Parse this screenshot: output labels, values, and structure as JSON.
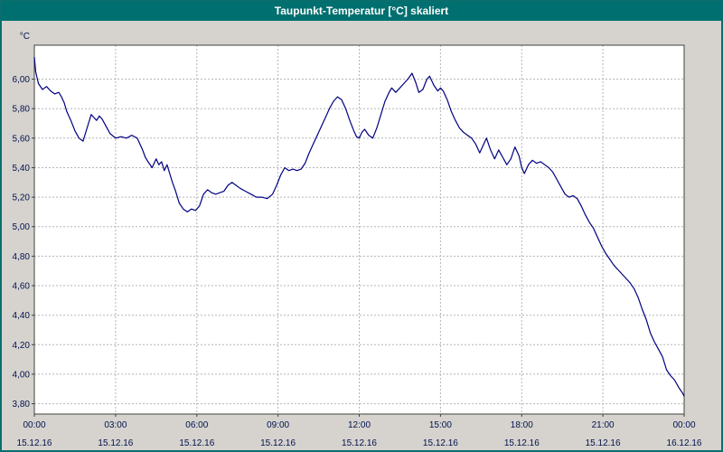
{
  "window": {
    "title": "Taupunkt-Temperatur [°C] skaliert"
  },
  "chart_data": {
    "type": "line",
    "title": "Taupunkt-Temperatur [°C] skaliert",
    "ylabel": "°C",
    "xlabel": "",
    "xlim_hours": [
      0,
      24
    ],
    "ylim": [
      3.73,
      6.23
    ],
    "grid": true,
    "legend": "none",
    "colors": {
      "line": "#000080",
      "grid": "#b5b5b5",
      "plot_border": "#404040",
      "plot_bg": "#ffffff",
      "page_bg": "#d6d3ce",
      "titlebar_bg": "#006f6f",
      "titlebar_text": "#ffffff",
      "axis_text": "#00114d"
    },
    "y_ticks": [
      6.0,
      5.8,
      5.6,
      5.4,
      5.2,
      5.0,
      4.8,
      4.6,
      4.4,
      4.2,
      4.0,
      3.8
    ],
    "y_tick_labels": [
      "6,00",
      "5,80",
      "5,60",
      "5,40",
      "5,20",
      "5,00",
      "4,80",
      "4,60",
      "4,40",
      "4,20",
      "4,00",
      "3,80"
    ],
    "x_ticks_hours": [
      0,
      3,
      6,
      9,
      12,
      15,
      18,
      21,
      24
    ],
    "x_tick_time_labels": [
      "00:00",
      "03:00",
      "06:00",
      "09:00",
      "12:00",
      "15:00",
      "18:00",
      "21:00",
      "00:00"
    ],
    "x_tick_date_labels": [
      "15.12.16",
      "15.12.16",
      "15.12.16",
      "15.12.16",
      "15.12.16",
      "15.12.16",
      "15.12.16",
      "15.12.16",
      "16.12.16"
    ],
    "series": [
      {
        "name": "Taupunkt-Temperatur [°C]",
        "points": [
          [
            0.0,
            6.15
          ],
          [
            0.05,
            6.05
          ],
          [
            0.15,
            5.97
          ],
          [
            0.3,
            5.93
          ],
          [
            0.45,
            5.95
          ],
          [
            0.6,
            5.92
          ],
          [
            0.75,
            5.9
          ],
          [
            0.9,
            5.91
          ],
          [
            1.0,
            5.88
          ],
          [
            1.1,
            5.84
          ],
          [
            1.2,
            5.78
          ],
          [
            1.35,
            5.72
          ],
          [
            1.5,
            5.65
          ],
          [
            1.65,
            5.6
          ],
          [
            1.8,
            5.58
          ],
          [
            1.9,
            5.64
          ],
          [
            2.0,
            5.7
          ],
          [
            2.1,
            5.76
          ],
          [
            2.2,
            5.74
          ],
          [
            2.3,
            5.72
          ],
          [
            2.4,
            5.75
          ],
          [
            2.5,
            5.73
          ],
          [
            2.65,
            5.68
          ],
          [
            2.8,
            5.63
          ],
          [
            3.0,
            5.6
          ],
          [
            3.2,
            5.61
          ],
          [
            3.4,
            5.6
          ],
          [
            3.6,
            5.62
          ],
          [
            3.8,
            5.6
          ],
          [
            3.9,
            5.56
          ],
          [
            4.0,
            5.52
          ],
          [
            4.1,
            5.47
          ],
          [
            4.2,
            5.44
          ],
          [
            4.35,
            5.4
          ],
          [
            4.5,
            5.46
          ],
          [
            4.6,
            5.42
          ],
          [
            4.7,
            5.44
          ],
          [
            4.8,
            5.38
          ],
          [
            4.9,
            5.42
          ],
          [
            5.0,
            5.36
          ],
          [
            5.1,
            5.3
          ],
          [
            5.2,
            5.25
          ],
          [
            5.35,
            5.16
          ],
          [
            5.5,
            5.12
          ],
          [
            5.65,
            5.1
          ],
          [
            5.8,
            5.12
          ],
          [
            5.95,
            5.11
          ],
          [
            6.1,
            5.14
          ],
          [
            6.25,
            5.22
          ],
          [
            6.4,
            5.25
          ],
          [
            6.55,
            5.23
          ],
          [
            6.7,
            5.22
          ],
          [
            6.85,
            5.23
          ],
          [
            7.0,
            5.24
          ],
          [
            7.15,
            5.28
          ],
          [
            7.3,
            5.3
          ],
          [
            7.45,
            5.28
          ],
          [
            7.6,
            5.26
          ],
          [
            7.8,
            5.24
          ],
          [
            8.0,
            5.22
          ],
          [
            8.2,
            5.2
          ],
          [
            8.4,
            5.2
          ],
          [
            8.6,
            5.19
          ],
          [
            8.8,
            5.22
          ],
          [
            8.95,
            5.28
          ],
          [
            9.1,
            5.35
          ],
          [
            9.25,
            5.4
          ],
          [
            9.4,
            5.38
          ],
          [
            9.55,
            5.39
          ],
          [
            9.7,
            5.38
          ],
          [
            9.85,
            5.39
          ],
          [
            10.0,
            5.43
          ],
          [
            10.15,
            5.5
          ],
          [
            10.3,
            5.56
          ],
          [
            10.45,
            5.62
          ],
          [
            10.6,
            5.68
          ],
          [
            10.75,
            5.74
          ],
          [
            10.9,
            5.8
          ],
          [
            11.05,
            5.85
          ],
          [
            11.2,
            5.88
          ],
          [
            11.35,
            5.86
          ],
          [
            11.5,
            5.8
          ],
          [
            11.65,
            5.72
          ],
          [
            11.8,
            5.65
          ],
          [
            11.9,
            5.61
          ],
          [
            12.0,
            5.6
          ],
          [
            12.1,
            5.64
          ],
          [
            12.2,
            5.66
          ],
          [
            12.35,
            5.62
          ],
          [
            12.5,
            5.6
          ],
          [
            12.65,
            5.67
          ],
          [
            12.8,
            5.76
          ],
          [
            12.95,
            5.85
          ],
          [
            13.1,
            5.91
          ],
          [
            13.2,
            5.94
          ],
          [
            13.35,
            5.91
          ],
          [
            13.5,
            5.94
          ],
          [
            13.65,
            5.97
          ],
          [
            13.8,
            6.0
          ],
          [
            13.95,
            6.04
          ],
          [
            14.1,
            5.97
          ],
          [
            14.2,
            5.91
          ],
          [
            14.35,
            5.93
          ],
          [
            14.5,
            6.0
          ],
          [
            14.6,
            6.02
          ],
          [
            14.75,
            5.96
          ],
          [
            14.9,
            5.92
          ],
          [
            15.0,
            5.94
          ],
          [
            15.1,
            5.92
          ],
          [
            15.25,
            5.86
          ],
          [
            15.4,
            5.78
          ],
          [
            15.55,
            5.72
          ],
          [
            15.7,
            5.67
          ],
          [
            15.85,
            5.64
          ],
          [
            16.0,
            5.62
          ],
          [
            16.15,
            5.6
          ],
          [
            16.3,
            5.56
          ],
          [
            16.45,
            5.5
          ],
          [
            16.6,
            5.56
          ],
          [
            16.7,
            5.6
          ],
          [
            16.85,
            5.52
          ],
          [
            17.0,
            5.46
          ],
          [
            17.15,
            5.52
          ],
          [
            17.3,
            5.47
          ],
          [
            17.45,
            5.42
          ],
          [
            17.6,
            5.46
          ],
          [
            17.75,
            5.54
          ],
          [
            17.9,
            5.48
          ],
          [
            18.0,
            5.4
          ],
          [
            18.1,
            5.36
          ],
          [
            18.25,
            5.42
          ],
          [
            18.4,
            5.45
          ],
          [
            18.55,
            5.43
          ],
          [
            18.7,
            5.44
          ],
          [
            18.85,
            5.42
          ],
          [
            19.0,
            5.4
          ],
          [
            19.15,
            5.37
          ],
          [
            19.3,
            5.32
          ],
          [
            19.45,
            5.27
          ],
          [
            19.6,
            5.22
          ],
          [
            19.75,
            5.2
          ],
          [
            19.9,
            5.21
          ],
          [
            20.05,
            5.19
          ],
          [
            20.2,
            5.14
          ],
          [
            20.35,
            5.08
          ],
          [
            20.5,
            5.03
          ],
          [
            20.65,
            4.99
          ],
          [
            20.8,
            4.93
          ],
          [
            20.95,
            4.87
          ],
          [
            21.1,
            4.82
          ],
          [
            21.25,
            4.78
          ],
          [
            21.4,
            4.74
          ],
          [
            21.55,
            4.71
          ],
          [
            21.7,
            4.68
          ],
          [
            21.85,
            4.65
          ],
          [
            22.0,
            4.62
          ],
          [
            22.15,
            4.58
          ],
          [
            22.3,
            4.52
          ],
          [
            22.45,
            4.44
          ],
          [
            22.6,
            4.37
          ],
          [
            22.75,
            4.28
          ],
          [
            22.9,
            4.22
          ],
          [
            23.05,
            4.17
          ],
          [
            23.2,
            4.12
          ],
          [
            23.35,
            4.03
          ],
          [
            23.5,
            3.99
          ],
          [
            23.65,
            3.96
          ],
          [
            23.8,
            3.91
          ],
          [
            23.95,
            3.87
          ],
          [
            24.0,
            3.85
          ]
        ]
      }
    ]
  }
}
